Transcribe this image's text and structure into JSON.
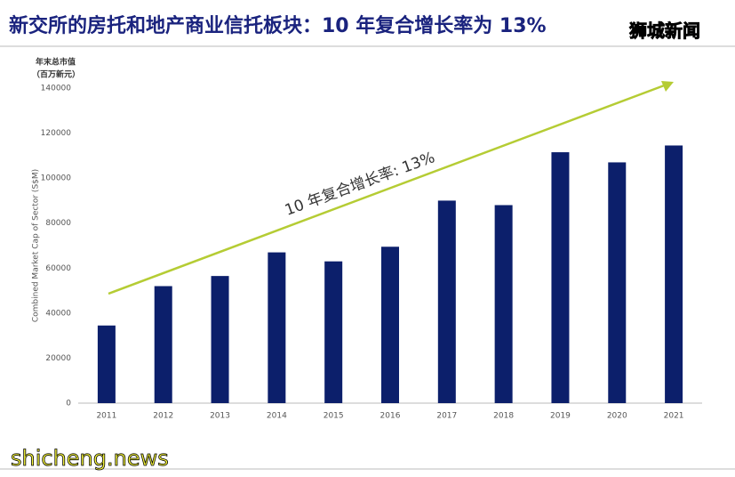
{
  "chart_data": {
    "type": "bar",
    "title": "新交所的房托和地产商业信托板块：10 年复合增长率为 13%",
    "y_unit_label": [
      "年末总市值",
      "（百万新元）"
    ],
    "y_axis_label": "Combined Market Cap of Sector (S$M)",
    "annotation": "10 年复合增长率: 13%",
    "categories": [
      "2011",
      "2012",
      "2013",
      "2014",
      "2015",
      "2016",
      "2017",
      "2018",
      "2019",
      "2020",
      "2021"
    ],
    "values": [
      34500,
      52000,
      56500,
      67000,
      63000,
      69500,
      90000,
      88000,
      111500,
      107000,
      114500
    ],
    "color": "#0c1f6b",
    "ylim": [
      0,
      140000
    ],
    "yticks": [
      0,
      20000,
      40000,
      60000,
      80000,
      100000,
      120000,
      140000
    ],
    "grid": false,
    "watermarks": [
      "狮城新闻",
      "shicheng.news"
    ]
  }
}
